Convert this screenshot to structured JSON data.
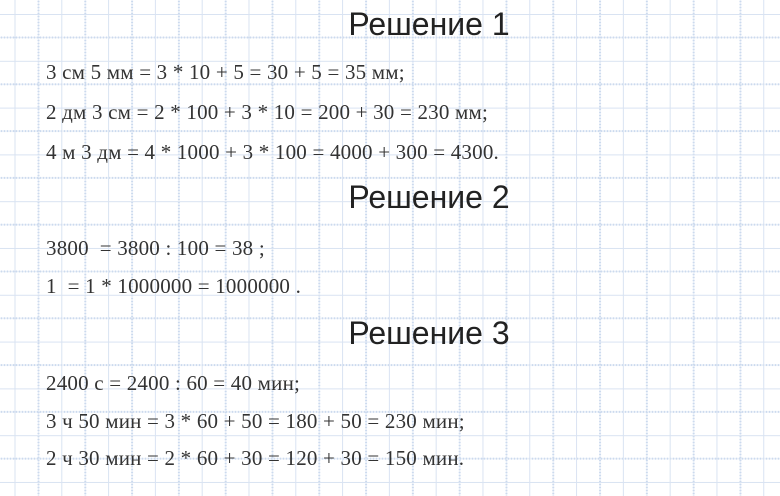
{
  "page": {
    "sections": [
      {
        "title": "Решение 1",
        "lines": [
          "3 см 5 мм = 3 * 10 + 5 = 30 + 5 = 35 мм;",
          "2 дм 3 см = 2 * 100 + 3 * 10 = 200 + 30 = 230 мм;",
          "4 м 3 дм = 4 * 1000 + 3 * 100 = 4000 + 300 = 4300."
        ]
      },
      {
        "title": "Решение 2",
        "lines": [
          "3800  = 3800 : 100 = 38 ;",
          "1  = 1 * 1000000 = 1000000 ."
        ]
      },
      {
        "title": "Решение 3",
        "lines": [
          "2400 с = 2400 : 60 = 40 мин;",
          "3 ч 50 мин = 3 * 60 + 50 = 180 + 50 = 230 мин;",
          "2 ч 30 мин = 2 * 60 + 30 = 120 + 30 = 150 мин."
        ]
      }
    ]
  },
  "colors": {
    "background": "#ffffff",
    "grid_solid": "#d9e3f2",
    "grid_dotted": "#ccdaee",
    "heading": "#222222",
    "text": "#333333"
  }
}
